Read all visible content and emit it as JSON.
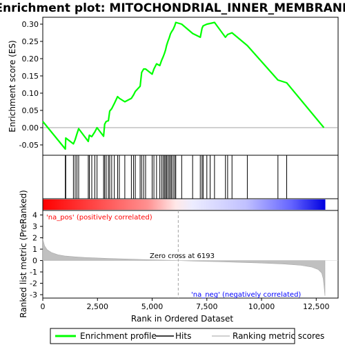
{
  "chart_data": {
    "type": "line",
    "title": "Enrichment plot: MITOCHONDRIAL_INNER_MEMBRANE",
    "xlabel": "Rank in Ordered Dataset",
    "ylabel_top": "Enrichment score (ES)",
    "ylabel_bottom": "Ranked list metric (PreRanked)",
    "xlim": [
      0,
      13500
    ],
    "es_ylim": [
      -0.08,
      0.32
    ],
    "metric_ylim": [
      -3.3,
      4.4
    ],
    "x_ticks": [
      {
        "value": 0,
        "label": "0"
      },
      {
        "value": 2500,
        "label": "2,500"
      },
      {
        "value": 5000,
        "label": "5,000"
      },
      {
        "value": 7500,
        "label": "7,500"
      },
      {
        "value": 10000,
        "label": "10,000"
      },
      {
        "value": 12500,
        "label": "12,500"
      }
    ],
    "es_ticks": [
      {
        "value": -0.05,
        "label": "-0.05"
      },
      {
        "value": 0.0,
        "label": "0.00"
      },
      {
        "value": 0.05,
        "label": "0.05"
      },
      {
        "value": 0.1,
        "label": "0.10"
      },
      {
        "value": 0.15,
        "label": "0.15"
      },
      {
        "value": 0.2,
        "label": "0.20"
      },
      {
        "value": 0.25,
        "label": "0.25"
      },
      {
        "value": 0.3,
        "label": "0.30"
      }
    ],
    "metric_ticks": [
      {
        "value": -3,
        "label": "-3"
      },
      {
        "value": -2,
        "label": "-2"
      },
      {
        "value": -1,
        "label": "-1"
      },
      {
        "value": 0,
        "label": "0"
      },
      {
        "value": 1,
        "label": "1"
      },
      {
        "value": 2,
        "label": "2"
      },
      {
        "value": 3,
        "label": "3"
      },
      {
        "value": 4,
        "label": "4"
      }
    ],
    "series": [
      {
        "name": "Enrichment profile",
        "color": "#00ff00",
        "x": [
          0,
          1030,
          1050,
          1400,
          1480,
          1560,
          1640,
          2080,
          2130,
          2240,
          2380,
          2480,
          2780,
          2830,
          2900,
          3000,
          3060,
          3150,
          3270,
          3420,
          3500,
          3750,
          4050,
          4150,
          4230,
          4450,
          4520,
          4610,
          4700,
          5000,
          5080,
          5200,
          5350,
          5430,
          5500,
          5560,
          5610,
          5660,
          5720,
          5780,
          5840,
          5890,
          5960,
          6030,
          6080,
          6350,
          6850,
          7200,
          7280,
          7330,
          7500,
          7650,
          7850,
          8350,
          8450,
          8650,
          9350,
          10750,
          11150,
          12850
        ],
        "y": [
          0.018,
          -0.062,
          -0.03,
          -0.047,
          -0.035,
          -0.018,
          -0.003,
          -0.04,
          -0.022,
          -0.026,
          -0.012,
          0.0,
          -0.025,
          0.01,
          0.018,
          0.02,
          0.048,
          0.055,
          0.07,
          0.09,
          0.085,
          0.075,
          0.085,
          0.095,
          0.105,
          0.12,
          0.16,
          0.17,
          0.17,
          0.155,
          0.17,
          0.185,
          0.18,
          0.195,
          0.205,
          0.215,
          0.225,
          0.238,
          0.25,
          0.26,
          0.272,
          0.278,
          0.285,
          0.295,
          0.305,
          0.3,
          0.273,
          0.262,
          0.288,
          0.295,
          0.3,
          0.302,
          0.305,
          0.262,
          0.27,
          0.275,
          0.238,
          0.138,
          0.13,
          0.0
        ]
      }
    ],
    "hits": [
      1030,
      1050,
      1400,
      1480,
      1560,
      1640,
      2080,
      2130,
      2240,
      2380,
      2480,
      2780,
      2830,
      2900,
      3000,
      3060,
      3150,
      3270,
      3420,
      3500,
      3750,
      4050,
      4150,
      4230,
      4450,
      4520,
      4610,
      4700,
      5000,
      5080,
      5200,
      5350,
      5430,
      5500,
      5560,
      5610,
      5660,
      5720,
      5780,
      5840,
      5890,
      5960,
      6030,
      6080,
      6350,
      6850,
      7200,
      7280,
      7330,
      7500,
      7650,
      7850,
      8350,
      8450,
      8650,
      9350,
      10750,
      11150
    ],
    "metric_curve": {
      "x": [
        0,
        80,
        200,
        400,
        700,
        1000,
        1500,
        2000,
        3000,
        4000,
        5000,
        6193,
        7000,
        8000,
        9000,
        10000,
        11000,
        11800,
        12300,
        12600,
        12750,
        12820,
        12860,
        12900
      ],
      "y": [
        1.9,
        1.3,
        0.95,
        0.7,
        0.5,
        0.4,
        0.32,
        0.26,
        0.18,
        0.12,
        0.06,
        0.0,
        -0.05,
        -0.1,
        -0.16,
        -0.22,
        -0.3,
        -0.42,
        -0.58,
        -0.8,
        -1.1,
        -1.6,
        -2.3,
        -3.1
      ]
    },
    "zero_cross_label": "Zero cross at 6193",
    "zero_cross_rank": 6193,
    "na_pos_label": "'na_pos' (positively correlated)",
    "na_neg_label": "'na_neg' (negatively correlated)",
    "legend": {
      "position": "bottom",
      "items": [
        {
          "label": "Enrichment profile",
          "color": "#00ff00"
        },
        {
          "label": "Hits",
          "color": "#000000"
        },
        {
          "label": "Ranking metric scores",
          "color": "#c0c0c0"
        }
      ]
    },
    "colors": {
      "profile": "#00ff00",
      "hits": "#000000",
      "metric_fill": "#c0c0c0",
      "pos_label": "#ff0000",
      "neg_label": "#0000ff",
      "zero_line": "#a0a0a0"
    }
  }
}
